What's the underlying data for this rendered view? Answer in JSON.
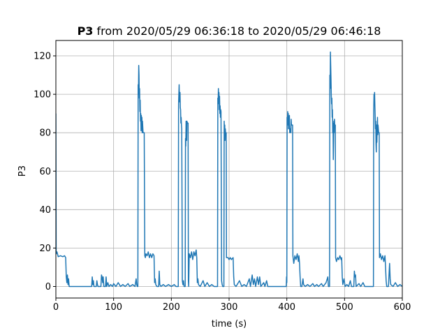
{
  "chart_data": {
    "type": "line",
    "title_bold": "P3",
    "title_rest": " from 2020/05/29 06:36:18 to 2020/05/29 06:46:18",
    "xlabel": "time (s)",
    "ylabel": "P3",
    "xlim": [
      0,
      600
    ],
    "ylim": [
      -6,
      128
    ],
    "xticks": [
      0,
      100,
      200,
      300,
      400,
      500,
      600
    ],
    "yticks": [
      0,
      20,
      40,
      60,
      80,
      100,
      120
    ],
    "grid": true,
    "line_color": "#1f77b4",
    "series": [
      {
        "points": [
          [
            0,
            90
          ],
          [
            0.5,
            17
          ],
          [
            2,
            18
          ],
          [
            4,
            15.5
          ],
          [
            8,
            16
          ],
          [
            12,
            15.5
          ],
          [
            15,
            16
          ],
          [
            17,
            15
          ],
          [
            18,
            5
          ],
          [
            19,
            2
          ],
          [
            20,
            6
          ],
          [
            21,
            1
          ],
          [
            22,
            4
          ],
          [
            23,
            0
          ],
          [
            62,
            0
          ],
          [
            63,
            5
          ],
          [
            64,
            1
          ],
          [
            65,
            3
          ],
          [
            66,
            0
          ],
          [
            70,
            0
          ],
          [
            71,
            3
          ],
          [
            72,
            1
          ],
          [
            73,
            0
          ],
          [
            78,
            0
          ],
          [
            79,
            6
          ],
          [
            80,
            5
          ],
          [
            81,
            2
          ],
          [
            82,
            5
          ],
          [
            83,
            0
          ],
          [
            86,
            0
          ],
          [
            87,
            5
          ],
          [
            88,
            0
          ],
          [
            90,
            2
          ],
          [
            92,
            0
          ],
          [
            95,
            1
          ],
          [
            98,
            0
          ],
          [
            100,
            1.5
          ],
          [
            104,
            0
          ],
          [
            108,
            2
          ],
          [
            112,
            0
          ],
          [
            116,
            1
          ],
          [
            120,
            0
          ],
          [
            125,
            1.5
          ],
          [
            128,
            0
          ],
          [
            133,
            1
          ],
          [
            137,
            0
          ],
          [
            139,
            4
          ],
          [
            140,
            1
          ],
          [
            141,
            0
          ],
          [
            142,
            0
          ],
          [
            142.5,
            105
          ],
          [
            143,
            100
          ],
          [
            143.5,
            115
          ],
          [
            144,
            110
          ],
          [
            144.5,
            98
          ],
          [
            145,
            103
          ],
          [
            145.5,
            91
          ],
          [
            146,
            97
          ],
          [
            146.5,
            86
          ],
          [
            147,
            90
          ],
          [
            147.5,
            81
          ],
          [
            148,
            89
          ],
          [
            148.5,
            84
          ],
          [
            149,
            88
          ],
          [
            149.5,
            80
          ],
          [
            150,
            86
          ],
          [
            151,
            80
          ],
          [
            152,
            80
          ],
          [
            153,
            80
          ],
          [
            154,
            16
          ],
          [
            155,
            15
          ],
          [
            156,
            17
          ],
          [
            158,
            16
          ],
          [
            160,
            18
          ],
          [
            162,
            15
          ],
          [
            164,
            17
          ],
          [
            166,
            15
          ],
          [
            168,
            17
          ],
          [
            170,
            16
          ],
          [
            171,
            2
          ],
          [
            172,
            4
          ],
          [
            173,
            1
          ],
          [
            175,
            0
          ],
          [
            178,
            0
          ],
          [
            179,
            8
          ],
          [
            180,
            1
          ],
          [
            182,
            0
          ],
          [
            186,
            1
          ],
          [
            190,
            0
          ],
          [
            195,
            1
          ],
          [
            200,
            0
          ],
          [
            205,
            1
          ],
          [
            208,
            0
          ],
          [
            212,
            0
          ],
          [
            212.5,
            95
          ],
          [
            213,
            100
          ],
          [
            213.5,
            105
          ],
          [
            214,
            98
          ],
          [
            214.5,
            96
          ],
          [
            215,
            101
          ],
          [
            215.5,
            93
          ],
          [
            216,
            92
          ],
          [
            216.5,
            85
          ],
          [
            217,
            88
          ],
          [
            217.5,
            84
          ],
          [
            218,
            82
          ],
          [
            219,
            3
          ],
          [
            220,
            1
          ],
          [
            221,
            3
          ],
          [
            222,
            0
          ],
          [
            224,
            0
          ],
          [
            224.5,
            77
          ],
          [
            225,
            73
          ],
          [
            225.5,
            86
          ],
          [
            226,
            80
          ],
          [
            226.5,
            76
          ],
          [
            227,
            86
          ],
          [
            228,
            85
          ],
          [
            229,
            85
          ],
          [
            229.5,
            3
          ],
          [
            230,
            0
          ],
          [
            231,
            17
          ],
          [
            233,
            15
          ],
          [
            235,
            18
          ],
          [
            237,
            14
          ],
          [
            239,
            18
          ],
          [
            241,
            16
          ],
          [
            243,
            19
          ],
          [
            244,
            15
          ],
          [
            245,
            2
          ],
          [
            246,
            4
          ],
          [
            247,
            1
          ],
          [
            250,
            0
          ],
          [
            255,
            3
          ],
          [
            258,
            0
          ],
          [
            262,
            2
          ],
          [
            266,
            0
          ],
          [
            270,
            1
          ],
          [
            274,
            0
          ],
          [
            280,
            0
          ],
          [
            280.5,
            98
          ],
          [
            281,
            95
          ],
          [
            281.5,
            103
          ],
          [
            282,
            97
          ],
          [
            282.5,
            101
          ],
          [
            283,
            92
          ],
          [
            283.5,
            99
          ],
          [
            284,
            90
          ],
          [
            284.5,
            94
          ],
          [
            285,
            88
          ],
          [
            285.5,
            92
          ],
          [
            286,
            91
          ],
          [
            287,
            3
          ],
          [
            288,
            1
          ],
          [
            289,
            0
          ],
          [
            291,
            0
          ],
          [
            291.5,
            86
          ],
          [
            292,
            80
          ],
          [
            292.5,
            84
          ],
          [
            293,
            76
          ],
          [
            293.5,
            82
          ],
          [
            294,
            79
          ],
          [
            295,
            80
          ],
          [
            295.5,
            15
          ],
          [
            298,
            15
          ],
          [
            300,
            14
          ],
          [
            302,
            15
          ],
          [
            304,
            14
          ],
          [
            307,
            15
          ],
          [
            308,
            5
          ],
          [
            309,
            1
          ],
          [
            312,
            0
          ],
          [
            318,
            3
          ],
          [
            322,
            0
          ],
          [
            326,
            1
          ],
          [
            330,
            0
          ],
          [
            335,
            4
          ],
          [
            337,
            0
          ],
          [
            340,
            6
          ],
          [
            342,
            1
          ],
          [
            344,
            4
          ],
          [
            346,
            0
          ],
          [
            349,
            5
          ],
          [
            351,
            1
          ],
          [
            353,
            5
          ],
          [
            355,
            0
          ],
          [
            360,
            2
          ],
          [
            362,
            0
          ],
          [
            365,
            3
          ],
          [
            367,
            0
          ],
          [
            399,
            0
          ],
          [
            399.5,
            5
          ],
          [
            400,
            2
          ],
          [
            400.5,
            88
          ],
          [
            401,
            85
          ],
          [
            401.5,
            91
          ],
          [
            402,
            84
          ],
          [
            402.5,
            90
          ],
          [
            403,
            82
          ],
          [
            403.5,
            87
          ],
          [
            404,
            85
          ],
          [
            404.5,
            89
          ],
          [
            405,
            80
          ],
          [
            406,
            82
          ],
          [
            407,
            80
          ],
          [
            407.5,
            87
          ],
          [
            408,
            84
          ],
          [
            409,
            84
          ],
          [
            410,
            84
          ],
          [
            410.5,
            16
          ],
          [
            412,
            12
          ],
          [
            414,
            16
          ],
          [
            416,
            14
          ],
          [
            418,
            17
          ],
          [
            420,
            13
          ],
          [
            421,
            16
          ],
          [
            422,
            12
          ],
          [
            423,
            5
          ],
          [
            424,
            0
          ],
          [
            426,
            0
          ],
          [
            428,
            4
          ],
          [
            429,
            1
          ],
          [
            432,
            0
          ],
          [
            436,
            1
          ],
          [
            440,
            0
          ],
          [
            445,
            1.5
          ],
          [
            448,
            0
          ],
          [
            452,
            1
          ],
          [
            455,
            0
          ],
          [
            460,
            1.5
          ],
          [
            463,
            0
          ],
          [
            468,
            2
          ],
          [
            471,
            5
          ],
          [
            472,
            0
          ],
          [
            474,
            0
          ],
          [
            474.5,
            110
          ],
          [
            475,
            103
          ],
          [
            475.5,
            122
          ],
          [
            476,
            115
          ],
          [
            476.5,
            108
          ],
          [
            477,
            100
          ],
          [
            477.5,
            95
          ],
          [
            478,
            98
          ],
          [
            478.5,
            88
          ],
          [
            479,
            92
          ],
          [
            479.5,
            80
          ],
          [
            480,
            85
          ],
          [
            480.5,
            66
          ],
          [
            481,
            75
          ],
          [
            481.5,
            86
          ],
          [
            482,
            80
          ],
          [
            482.5,
            87
          ],
          [
            483,
            84
          ],
          [
            484,
            84
          ],
          [
            484.5,
            15
          ],
          [
            486,
            13
          ],
          [
            488,
            15
          ],
          [
            490,
            14
          ],
          [
            492,
            16
          ],
          [
            494,
            14
          ],
          [
            495,
            15
          ],
          [
            496,
            5
          ],
          [
            497,
            1
          ],
          [
            499,
            4
          ],
          [
            501,
            0
          ],
          [
            504,
            1
          ],
          [
            507,
            0
          ],
          [
            510,
            3
          ],
          [
            512,
            0
          ],
          [
            516,
            0
          ],
          [
            517,
            8
          ],
          [
            518,
            5
          ],
          [
            519,
            6
          ],
          [
            520,
            0
          ],
          [
            525,
            1.5
          ],
          [
            528,
            0
          ],
          [
            532,
            2
          ],
          [
            535,
            0
          ],
          [
            550,
            0
          ],
          [
            550.5,
            92
          ],
          [
            551,
            100
          ],
          [
            551.5,
            96
          ],
          [
            552,
            101
          ],
          [
            552.5,
            94
          ],
          [
            553,
            89
          ],
          [
            553.5,
            82
          ],
          [
            554,
            86
          ],
          [
            554.5,
            74
          ],
          [
            555,
            70
          ],
          [
            555.5,
            84
          ],
          [
            556,
            75
          ],
          [
            556.5,
            82
          ],
          [
            557,
            88
          ],
          [
            557.5,
            79
          ],
          [
            558,
            84
          ],
          [
            559,
            80
          ],
          [
            560,
            80
          ],
          [
            560.5,
            15
          ],
          [
            562,
            17
          ],
          [
            564,
            14
          ],
          [
            566,
            16
          ],
          [
            568,
            13
          ],
          [
            570,
            16
          ],
          [
            571,
            10
          ],
          [
            572,
            3
          ],
          [
            573,
            0
          ],
          [
            576,
            0
          ],
          [
            578,
            12
          ],
          [
            579,
            4
          ],
          [
            580,
            1
          ],
          [
            584,
            0
          ],
          [
            588,
            2
          ],
          [
            592,
            0
          ],
          [
            596,
            1
          ],
          [
            600,
            0
          ]
        ]
      }
    ]
  }
}
